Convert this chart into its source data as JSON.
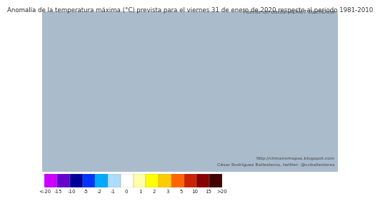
{
  "title": "Anomalía de la temperatura máxima (°C) prevista para el viernes 31 de enero de 2020 respecto al periodo 1981-2010",
  "subtitle": "Fuente de datos: AEMET OpenData",
  "credit_line1": "http://climanomapas.blogspot.com",
  "credit_line2": "César Rodríguez Ballesteros, twitter: @ccballesteros",
  "colorbar_labels": [
    "<-20",
    "-15",
    "-10",
    "-5",
    "-2",
    "-1",
    "0",
    "1",
    "2",
    "3",
    "5",
    "10",
    "15",
    ">20"
  ],
  "colorbar_colors": [
    "#cc00ff",
    "#6600cc",
    "#000099",
    "#0033ff",
    "#00aaff",
    "#aaddff",
    "#ffffff",
    "#ffffaa",
    "#ffff00",
    "#ffcc00",
    "#ff6600",
    "#cc2200",
    "#880000",
    "#440000"
  ],
  "bg_color": "#ffffff",
  "title_color": "#333333",
  "title_fontsize": 6.2,
  "subtitle_fontsize": 5.2,
  "credit_fontsize": 4.5,
  "cb_label_fontsize": 5.0,
  "map_extent": [
    -10.0,
    5.0,
    35.2,
    44.5
  ],
  "ocean_color": "#aabbcc",
  "border_color": "#555555",
  "border_lw": 0.4
}
